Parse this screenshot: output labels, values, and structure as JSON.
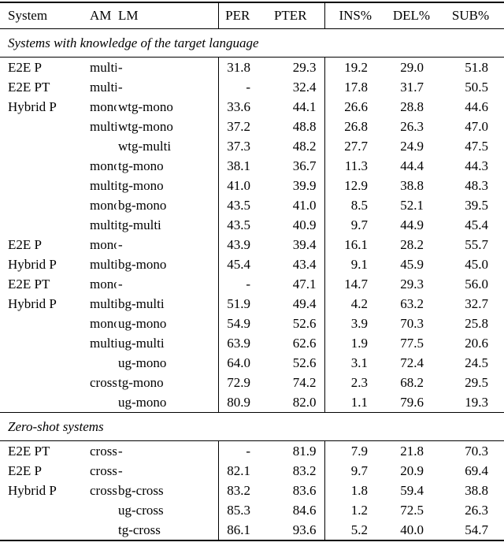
{
  "table": {
    "columns": [
      "System",
      "AM",
      "LM",
      "PER",
      "PTER",
      "INS%",
      "DEL%",
      "SUB%"
    ],
    "text_color": "#000000",
    "background_color": "#ffffff",
    "sections": [
      {
        "label": "Systems with knowledge of the target language",
        "rows": [
          [
            "E2E P",
            "multi",
            "-",
            "31.8",
            "29.3",
            "19.2",
            "29.0",
            "51.8"
          ],
          [
            "E2E PT",
            "multi",
            "-",
            "-",
            "32.4",
            "17.8",
            "31.7",
            "50.5"
          ],
          [
            "Hybrid P",
            "mono",
            "wtg-mono",
            "33.6",
            "44.1",
            "26.6",
            "28.8",
            "44.6"
          ],
          [
            "",
            "multi",
            "wtg-mono",
            "37.2",
            "48.8",
            "26.8",
            "26.3",
            "47.0"
          ],
          [
            "",
            "",
            "wtg-multi",
            "37.3",
            "48.2",
            "27.7",
            "24.9",
            "47.5"
          ],
          [
            "",
            "mono",
            "tg-mono",
            "38.1",
            "36.7",
            "11.3",
            "44.4",
            "44.3"
          ],
          [
            "",
            "multi",
            "tg-mono",
            "41.0",
            "39.9",
            "12.9",
            "38.8",
            "48.3"
          ],
          [
            "",
            "mono",
            "bg-mono",
            "43.5",
            "41.0",
            "8.5",
            "52.1",
            "39.5"
          ],
          [
            "",
            "multi",
            "tg-multi",
            "43.5",
            "40.9",
            "9.7",
            "44.9",
            "45.4"
          ],
          [
            "E2E P",
            "mono",
            "-",
            "43.9",
            "39.4",
            "16.1",
            "28.2",
            "55.7"
          ],
          [
            "Hybrid P",
            "multi",
            "bg-mono",
            "45.4",
            "43.4",
            "9.1",
            "45.9",
            "45.0"
          ],
          [
            "E2E PT",
            "mono",
            "-",
            "-",
            "47.1",
            "14.7",
            "29.3",
            "56.0"
          ],
          [
            "Hybrid P",
            "multi",
            "bg-multi",
            "51.9",
            "49.4",
            "4.2",
            "63.2",
            "32.7"
          ],
          [
            "",
            "mono",
            "ug-mono",
            "54.9",
            "52.6",
            "3.9",
            "70.3",
            "25.8"
          ],
          [
            "",
            "multi",
            "ug-multi",
            "63.9",
            "62.6",
            "1.9",
            "77.5",
            "20.6"
          ],
          [
            "",
            "",
            "ug-mono",
            "64.0",
            "52.6",
            "3.1",
            "72.4",
            "24.5"
          ],
          [
            "",
            "cross",
            "tg-mono",
            "72.9",
            "74.2",
            "2.3",
            "68.2",
            "29.5"
          ],
          [
            "",
            "",
            "ug-mono",
            "80.9",
            "82.0",
            "1.1",
            "79.6",
            "19.3"
          ]
        ]
      },
      {
        "label": "Zero-shot systems",
        "rows": [
          [
            "E2E PT",
            "cross",
            "-",
            "-",
            "81.9",
            "7.9",
            "21.8",
            "70.3"
          ],
          [
            "E2E P",
            "cross",
            "-",
            "82.1",
            "83.2",
            "9.7",
            "20.9",
            "69.4"
          ],
          [
            "Hybrid P",
            "cross",
            "bg-cross",
            "83.2",
            "83.6",
            "1.8",
            "59.4",
            "38.8"
          ],
          [
            "",
            "",
            "ug-cross",
            "85.3",
            "84.6",
            "1.2",
            "72.5",
            "26.3"
          ],
          [
            "",
            "",
            "tg-cross",
            "86.1",
            "93.6",
            "5.2",
            "40.0",
            "54.7"
          ]
        ]
      }
    ]
  }
}
